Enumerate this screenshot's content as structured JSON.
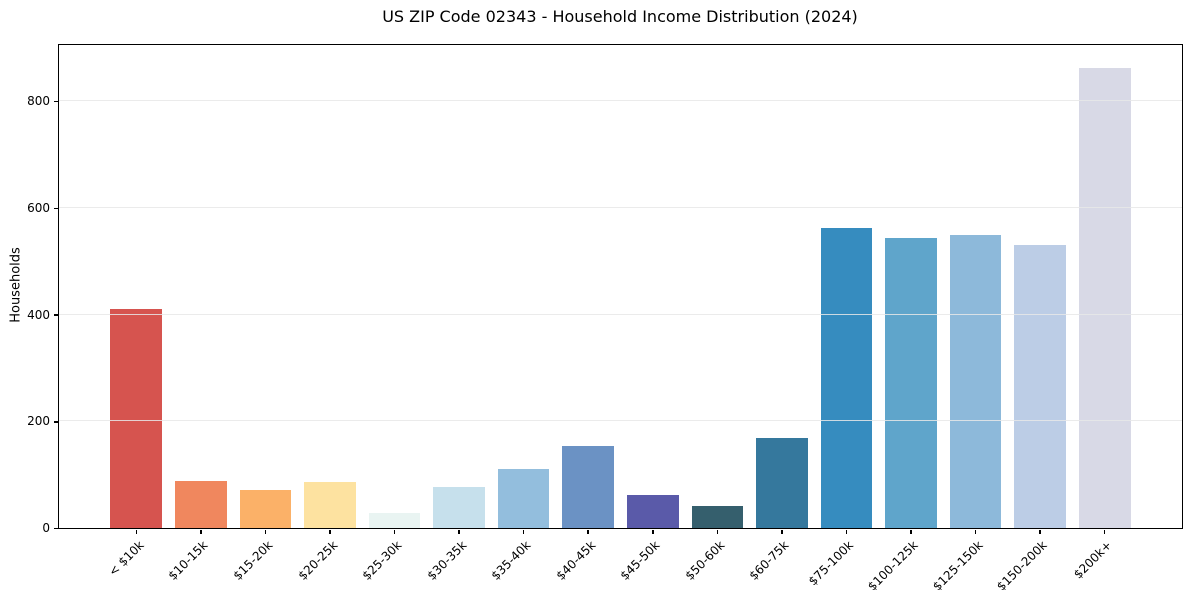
{
  "chart_data": {
    "type": "bar",
    "title": "US ZIP Code 02343 - Household Income Distribution (2024)",
    "xlabel": "",
    "ylabel": "Households",
    "ylim": [
      0,
      905
    ],
    "yticks": [
      0,
      200,
      400,
      600,
      800
    ],
    "grid": true,
    "legend": "none",
    "categories": [
      "< $10k",
      "$10-15k",
      "$15-20k",
      "$20-25k",
      "$25-30k",
      "$30-35k",
      "$35-40k",
      "$40-45k",
      "$45-50k",
      "$50-60k",
      "$60-75k",
      "$75-100k",
      "$100-125k",
      "$125-150k",
      "$150-200k",
      "$200k+"
    ],
    "values": [
      410,
      88,
      71,
      87,
      29,
      76,
      111,
      154,
      61,
      41,
      168,
      563,
      543,
      550,
      530,
      862
    ],
    "bar_colors": [
      "#d6544f",
      "#f0875e",
      "#fbb168",
      "#fde2a0",
      "#e9f4f2",
      "#c6e0ec",
      "#93bedd",
      "#6b92c4",
      "#5a5aa9",
      "#355f6d",
      "#35789d",
      "#368cbf",
      "#5fa5cb",
      "#8db9da",
      "#bccde6",
      "#d8d9e6"
    ]
  },
  "colors": {
    "spine": "#000000",
    "grid": "#e7e7e7",
    "background": "#ffffff",
    "text": "#000000"
  }
}
